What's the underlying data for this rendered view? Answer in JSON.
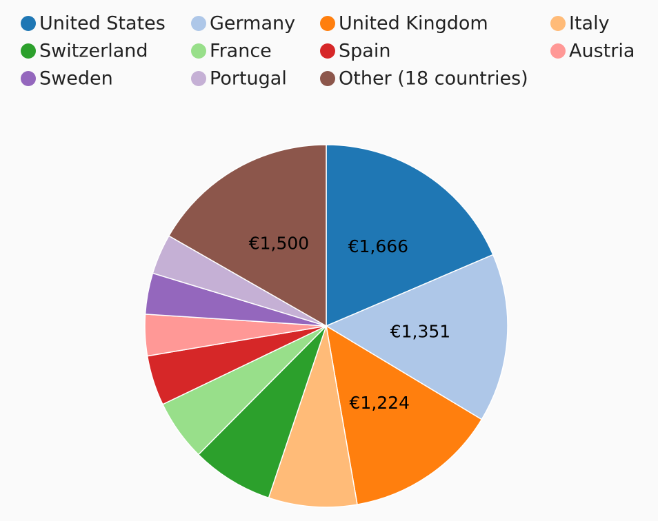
{
  "chart_data": {
    "type": "pie",
    "categories": [
      "United States",
      "Germany",
      "United Kingdom",
      "Italy",
      "Switzerland",
      "France",
      "Spain",
      "Austria",
      "Sweden",
      "Portugal",
      "Other (18 countries)"
    ],
    "values": [
      1666,
      1351,
      1224,
      707,
      655,
      488,
      401,
      331,
      329,
      321,
      1500
    ],
    "value_labels": [
      "€1,666",
      "€1,351",
      "€1,224",
      null,
      null,
      null,
      null,
      null,
      null,
      null,
      "€1,500"
    ],
    "colors": [
      "#1f77b4",
      "#aec7e8",
      "#ff7f0e",
      "#ffbb78",
      "#2ca02c",
      "#98df8a",
      "#d62728",
      "#ff9896",
      "#9467bd",
      "#c5b0d5",
      "#8c564b"
    ],
    "legend": "top"
  }
}
